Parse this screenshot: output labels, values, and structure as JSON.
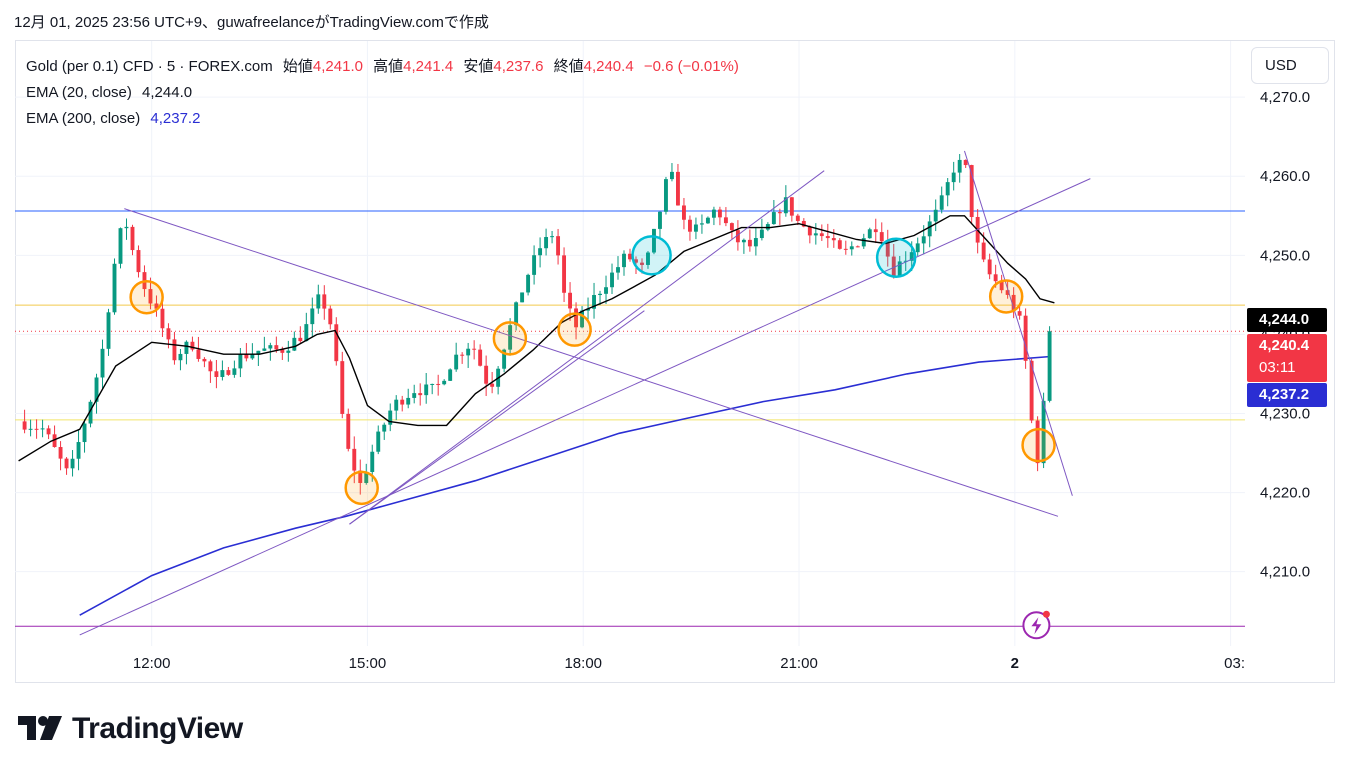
{
  "caption": "12月 01, 2025 23:56 UTC+9、guwafreelanceがTradingView.comで作成",
  "legend": {
    "symbol": "Gold (per 0.1) CFD · 5 · FOREX.com",
    "open_label": "始値",
    "open": "4,241.0",
    "high_label": "高値",
    "high": "4,241.4",
    "low_label": "安値",
    "low": "4,237.6",
    "close_label": "終値",
    "close": "4,240.4",
    "change": "−0.6 (−0.01%)",
    "ema20_label": "EMA (20, close)",
    "ema20": "4,244.0",
    "ema200_label": "EMA (200, close)",
    "ema200": "4,237.2"
  },
  "currency_button": "USD",
  "price_tags": {
    "ema20": "4,244.0",
    "last": "4,240.4",
    "countdown": "03:11",
    "ema200": "4,237.2"
  },
  "brand": "TradingView",
  "icons": {
    "logo": "tradingview-logo-icon",
    "alert": "lightning-alert-icon"
  },
  "colors": {
    "up": "#089981",
    "down": "#f23645",
    "ema20": "#000000",
    "ema200": "#2a2ed3",
    "trend": "#7e57c2",
    "level_blue": "#2962ff",
    "level_yellow": "#f2c94c",
    "orange": "#ff9800",
    "teal": "#00bcd4"
  },
  "chart_data": {
    "type": "candlestick",
    "x_ticks": [
      "12:00",
      "15:00",
      "18:00",
      "21:00",
      "2",
      "03:"
    ],
    "y_ticks": [
      4210.0,
      4220.0,
      4230.0,
      4240.0,
      4250.0,
      4260.0,
      4270.0
    ],
    "y_tick_labels": [
      "4,210.0",
      "4,220.0",
      "4,230.0",
      "4,240.0",
      "4,250.0",
      "4,260.0",
      "4,270.0"
    ],
    "ylim": [
      4200.6,
      4277.1
    ],
    "x_range_hours": [
      10.1,
      27.2
    ],
    "anchors": [
      [
        10.15,
        4229.0
      ],
      [
        10.5,
        4228.0
      ],
      [
        10.85,
        4222.0
      ],
      [
        11.1,
        4230.0
      ],
      [
        11.3,
        4237.0
      ],
      [
        11.5,
        4250.0
      ],
      [
        11.62,
        4255.0
      ],
      [
        11.75,
        4250.0
      ],
      [
        11.9,
        4246.0
      ],
      [
        12.1,
        4242.0
      ],
      [
        12.3,
        4237.0
      ],
      [
        12.55,
        4239.0
      ],
      [
        12.9,
        4234.0
      ],
      [
        13.2,
        4237.0
      ],
      [
        13.5,
        4238.0
      ],
      [
        13.8,
        4238.0
      ],
      [
        14.1,
        4240.0
      ],
      [
        14.35,
        4245.0
      ],
      [
        14.5,
        4241.0
      ],
      [
        14.7,
        4226.0
      ],
      [
        14.9,
        4221.0
      ],
      [
        15.1,
        4226.0
      ],
      [
        15.35,
        4231.0
      ],
      [
        15.65,
        4233.0
      ],
      [
        15.95,
        4233.0
      ],
      [
        16.2,
        4237.0
      ],
      [
        16.45,
        4239.0
      ],
      [
        16.7,
        4233.0
      ],
      [
        16.95,
        4240.0
      ],
      [
        17.2,
        4247.0
      ],
      [
        17.4,
        4251.0
      ],
      [
        17.6,
        4253.0
      ],
      [
        17.75,
        4244.0
      ],
      [
        17.9,
        4241.0
      ],
      [
        18.1,
        4244.0
      ],
      [
        18.35,
        4247.0
      ],
      [
        18.6,
        4250.0
      ],
      [
        18.85,
        4248.0
      ],
      [
        19.05,
        4255.0
      ],
      [
        19.2,
        4261.0
      ],
      [
        19.4,
        4254.0
      ],
      [
        19.6,
        4253.0
      ],
      [
        19.85,
        4256.0
      ],
      [
        20.1,
        4252.0
      ],
      [
        20.35,
        4251.0
      ],
      [
        20.6,
        4254.0
      ],
      [
        20.8,
        4257.0
      ],
      [
        21.0,
        4254.0
      ],
      [
        21.2,
        4253.0
      ],
      [
        21.4,
        4252.0
      ],
      [
        21.6,
        4250.0
      ],
      [
        21.85,
        4252.0
      ],
      [
        22.1,
        4254.0
      ],
      [
        22.3,
        4248.0
      ],
      [
        22.5,
        4250.0
      ],
      [
        22.75,
        4253.0
      ],
      [
        22.95,
        4256.0
      ],
      [
        23.15,
        4261.0
      ],
      [
        23.3,
        4262.0
      ],
      [
        23.45,
        4252.0
      ],
      [
        23.6,
        4248.0
      ],
      [
        23.8,
        4246.0
      ],
      [
        23.95,
        4244.0
      ],
      [
        24.1,
        4241.0
      ],
      [
        24.2,
        4232.0
      ],
      [
        24.3,
        4223.0
      ],
      [
        24.45,
        4235.0
      ],
      [
        24.55,
        4240.4
      ]
    ],
    "ema20": [
      [
        10.15,
        4224.0
      ],
      [
        10.6,
        4226.5
      ],
      [
        11.0,
        4228.0
      ],
      [
        11.5,
        4236.0
      ],
      [
        12.0,
        4239.0
      ],
      [
        12.5,
        4238.5
      ],
      [
        13.0,
        4237.5
      ],
      [
        13.5,
        4237.5
      ],
      [
        14.0,
        4238.5
      ],
      [
        14.3,
        4240.0
      ],
      [
        14.55,
        4240.5
      ],
      [
        14.75,
        4237.0
      ],
      [
        15.0,
        4231.0
      ],
      [
        15.3,
        4229.0
      ],
      [
        15.7,
        4228.5
      ],
      [
        16.1,
        4228.5
      ],
      [
        16.5,
        4232.5
      ],
      [
        16.9,
        4235.0
      ],
      [
        17.3,
        4238.0
      ],
      [
        17.7,
        4241.5
      ],
      [
        18.0,
        4243.0
      ],
      [
        18.4,
        4244.5
      ],
      [
        18.7,
        4246.0
      ],
      [
        19.0,
        4247.5
      ],
      [
        19.4,
        4250.5
      ],
      [
        19.8,
        4252.0
      ],
      [
        20.2,
        4253.5
      ],
      [
        20.6,
        4253.5
      ],
      [
        21.0,
        4254.0
      ],
      [
        21.4,
        4253.0
      ],
      [
        21.8,
        4252.0
      ],
      [
        22.2,
        4251.5
      ],
      [
        22.6,
        4252.5
      ],
      [
        22.9,
        4254.0
      ],
      [
        23.1,
        4255.0
      ],
      [
        23.3,
        4255.0
      ],
      [
        23.6,
        4252.0
      ],
      [
        23.9,
        4249.0
      ],
      [
        24.15,
        4247.0
      ],
      [
        24.35,
        4244.5
      ],
      [
        24.55,
        4244.0
      ]
    ],
    "ema200": [
      [
        11.0,
        4204.5
      ],
      [
        12.0,
        4209.5
      ],
      [
        13.0,
        4213.0
      ],
      [
        14.0,
        4215.5
      ],
      [
        14.7,
        4217.0
      ],
      [
        15.5,
        4219.0
      ],
      [
        16.5,
        4221.5
      ],
      [
        17.5,
        4224.5
      ],
      [
        18.5,
        4227.5
      ],
      [
        19.5,
        4229.5
      ],
      [
        20.5,
        4231.5
      ],
      [
        21.5,
        4233.0
      ],
      [
        22.5,
        4235.0
      ],
      [
        23.5,
        4236.5
      ],
      [
        24.5,
        4237.2
      ]
    ],
    "horizontal_levels": [
      {
        "price": 4255.6,
        "color": "#2962ff"
      },
      {
        "price": 4243.7,
        "color": "#f2c94c"
      },
      {
        "price": 4240.4,
        "color": "#f23645",
        "style": "dotted"
      },
      {
        "price": 4229.2,
        "color": "#f2e56a"
      },
      {
        "price": 4203.1,
        "color": "#9c27b0"
      }
    ],
    "trend_lines": [
      {
        "from": [
          11.62,
          4255.9
        ],
        "to": [
          24.6,
          4217.0
        ]
      },
      {
        "from": [
          14.75,
          4216.0
        ],
        "to": [
          21.35,
          4260.7
        ]
      },
      {
        "from": [
          14.75,
          4216.0
        ],
        "to": [
          18.85,
          4243.0
        ]
      },
      {
        "from": [
          11.0,
          4202.0
        ],
        "to": [
          25.05,
          4259.7
        ]
      },
      {
        "from": [
          23.3,
          4263.2
        ],
        "to": [
          24.8,
          4219.6
        ]
      }
    ],
    "markers": [
      {
        "x": 11.93,
        "y": 4244.7,
        "color": "orange"
      },
      {
        "x": 14.92,
        "y": 4220.6,
        "color": "orange"
      },
      {
        "x": 16.98,
        "y": 4239.5,
        "color": "orange"
      },
      {
        "x": 17.88,
        "y": 4240.6,
        "color": "orange"
      },
      {
        "x": 18.95,
        "y": 4250.0,
        "color": "teal"
      },
      {
        "x": 22.35,
        "y": 4249.7,
        "color": "teal"
      },
      {
        "x": 23.88,
        "y": 4244.8,
        "color": "orange"
      },
      {
        "x": 24.33,
        "y": 4226.0,
        "color": "orange"
      }
    ]
  }
}
